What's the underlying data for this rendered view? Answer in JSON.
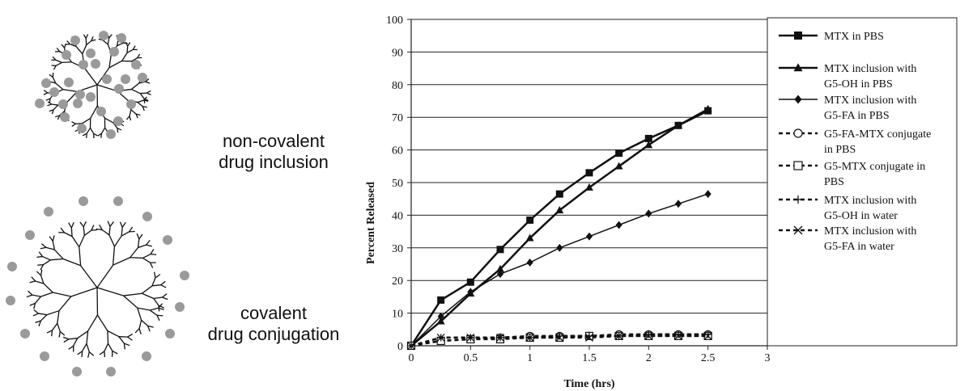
{
  "diagram": {
    "top_label": [
      "non-covalent",
      "drug inclusion"
    ],
    "bottom_label": [
      "covalent",
      "drug conjugation"
    ]
  },
  "chart_data": {
    "type": "line",
    "title": "",
    "xlabel": "Time (hrs)",
    "ylabel": "Percent Released",
    "xlim": [
      0,
      3
    ],
    "ylim": [
      0,
      100
    ],
    "xticks": [
      0,
      0.5,
      1,
      1.5,
      2,
      2.5,
      3
    ],
    "yticks": [
      0,
      10,
      20,
      30,
      40,
      50,
      60,
      70,
      80,
      90,
      100
    ],
    "grid": "horizontal",
    "legend_position": "right",
    "series": [
      {
        "name": "MTX in PBS",
        "marker": "filled-square",
        "dash": "solid",
        "width": 2.5,
        "x": [
          0,
          0.25,
          0.5,
          0.75,
          1,
          1.25,
          1.5,
          1.75,
          2,
          2.25,
          2.5
        ],
        "y": [
          0,
          14,
          19.5,
          29.5,
          38.5,
          46.5,
          53,
          59,
          63.5,
          67.5,
          72
        ]
      },
      {
        "name": "MTX inclusion with G5-OH in PBS",
        "marker": "filled-triangle",
        "dash": "solid",
        "width": 2.5,
        "x": [
          0,
          0.25,
          0.5,
          0.75,
          1,
          1.25,
          1.5,
          1.75,
          2,
          2.25,
          2.5
        ],
        "y": [
          0,
          7.5,
          16,
          23.5,
          33,
          41.5,
          48.5,
          55,
          61.5,
          67.5,
          72.5
        ]
      },
      {
        "name": "MTX inclusion with G5-FA in PBS",
        "marker": "filled-diamond",
        "dash": "solid",
        "width": 1.5,
        "x": [
          0,
          0.25,
          0.5,
          0.75,
          1,
          1.25,
          1.5,
          1.75,
          2,
          2.25,
          2.5
        ],
        "y": [
          0,
          9,
          16.5,
          22,
          25.5,
          30,
          33.5,
          37,
          40.5,
          43.5,
          46.5
        ]
      },
      {
        "name": "G5-FA-MTX conjugate in PBS",
        "marker": "open-circle",
        "dash": "dashed",
        "width": 2.5,
        "x": [
          0,
          0.25,
          0.5,
          0.75,
          1,
          1.25,
          1.5,
          1.75,
          2,
          2.25,
          2.5
        ],
        "y": [
          0,
          1.5,
          2,
          2.5,
          3,
          3,
          3,
          3.5,
          3.5,
          3.5,
          3.5
        ]
      },
      {
        "name": "G5-MTX conjugate in PBS",
        "marker": "open-square",
        "dash": "dashed",
        "width": 2.5,
        "x": [
          0,
          0.25,
          0.5,
          0.75,
          1,
          1.25,
          1.5,
          1.75,
          2,
          2.25,
          2.5
        ],
        "y": [
          0,
          1.5,
          2,
          2,
          2.5,
          2.5,
          3,
          3,
          3,
          3,
          3
        ]
      },
      {
        "name": "MTX inclusion with G5-OH in water",
        "marker": "plus",
        "dash": "dashed",
        "width": 2.5,
        "x": [
          0,
          0.25,
          0.5,
          0.75,
          1,
          1.25,
          1.5,
          1.75,
          2,
          2.25,
          2.5
        ],
        "y": [
          0,
          2.5,
          2.5,
          2.5,
          2.5,
          3,
          3,
          3,
          3.5,
          3.5,
          3.5
        ]
      },
      {
        "name": "MTX inclusion with G5-FA in water",
        "marker": "cross",
        "dash": "dashed",
        "width": 2.5,
        "x": [
          0,
          0.25,
          0.5,
          0.75,
          1,
          1.25,
          1.5,
          1.75,
          2,
          2.25,
          2.5
        ],
        "y": [
          0,
          2.5,
          2.5,
          2.5,
          2.5,
          2.5,
          2.5,
          3,
          3,
          3,
          3
        ]
      }
    ],
    "legend_lines": [
      [
        "MTX in PBS"
      ],
      [
        "MTX inclusion with",
        "G5-OH in PBS"
      ],
      [
        "MTX inclusion with",
        "G5-FA in PBS"
      ],
      [
        "G5-FA-MTX conjugate",
        "in PBS"
      ],
      [
        "G5-MTX conjugate in",
        "PBS"
      ],
      [
        "MTX inclusion with",
        "G5-OH in water"
      ],
      [
        "MTX inclusion with",
        "G5-FA in water"
      ]
    ]
  }
}
